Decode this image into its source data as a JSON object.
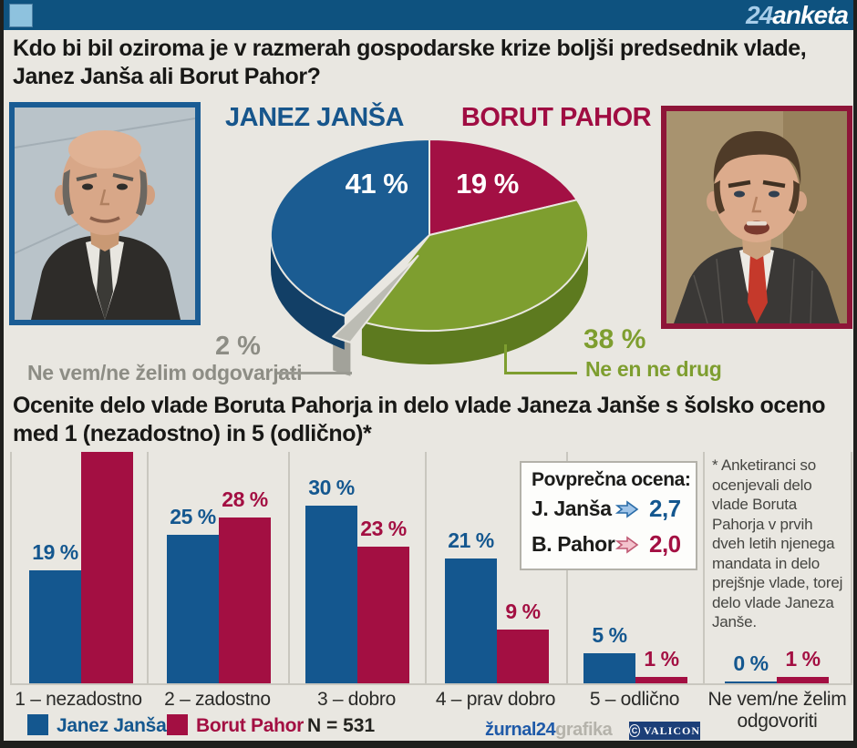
{
  "header": {
    "brand_24": "24",
    "brand_name": "anketa"
  },
  "question1": {
    "line1": "Kdo bi bil oziroma je v razmerah gospodarske krize boljši predsednik vlade,",
    "line2": "Janez Janša ali Borut Pahor?"
  },
  "question2": {
    "line1": "Ocenite delo vlade Boruta Pahorja in delo vlade Janeza Janše s šolsko oceno",
    "line2": "med 1 (nezadostno) in 5 (odlično)*"
  },
  "pie_section": {
    "candidate_left": "JANEZ JANŠA",
    "candidate_right": "BORUT PAHOR",
    "label_jansa_pct": "41 %",
    "label_pahor_pct": "19 %",
    "label_gray_pct": "2 %",
    "label_gray": "Ne vem/ne želim odgovarjati",
    "label_green_pct": "38 %",
    "label_green": "Ne en ne drug"
  },
  "average_box": {
    "title": "Povprečna ocena:",
    "rows": [
      {
        "name": "J. Janša",
        "value": "2,7",
        "color": "#14578f"
      },
      {
        "name": "B. Pahor",
        "value": "2,0",
        "color": "#a30f42"
      }
    ]
  },
  "footnote": "* Anketiranci so ocenjevali delo vlade Boruta Pahorja v prvih dveh letih njenega mandata in delo prejšnje vlade, torej delo vlade Janeza Janše.",
  "footer": {
    "zurnal": "žurnal24",
    "grafika": "grafika",
    "valicon": "VALICON",
    "valicon_c": "C"
  },
  "colors": {
    "jansa_blue": "#14578f",
    "pahor_red": "#a30f42",
    "neither_green": "#7e9e2f",
    "undecided_gray": "#bcbcb4",
    "header_bg": "#0e527f"
  },
  "chart_data": [
    {
      "type": "pie",
      "title": "Kdo bi bil oziroma je v razmerah gospodarske krize boljši predsednik vlade, Janez Janša ali Borut Pahor?",
      "style": "3d",
      "start_angle_deg": 0,
      "value_suffix": " %",
      "slices": [
        {
          "label": "BORUT PAHOR",
          "value": 19,
          "color": "#a31044",
          "dark": "#7a0c33"
        },
        {
          "label": "Ne en ne drug",
          "value": 38,
          "color": "#7e9e2f",
          "dark": "#5d7a1f"
        },
        {
          "label": "Ne vem/ne želim odgovarjati",
          "value": 2,
          "color": "#bcbcb4",
          "dark": "#a2a29a",
          "exploded": true
        },
        {
          "label": "JANEZ JANŠA",
          "value": 41,
          "color": "#1b5c92",
          "dark": "#123f66"
        }
      ]
    },
    {
      "type": "bar",
      "title": "Ocenite delo vlade Boruta Pahorja in delo vlade Janeza Janše s šolsko oceno med 1 (nezadostno) in 5 (odlično)*",
      "categories": [
        "1 – nezadostno",
        "2 – zadostno",
        "3 – dobro",
        "4 – prav dobro",
        "5 – odlično",
        "Ne vem/ne želim odgovoriti"
      ],
      "series": [
        {
          "name": "Janez Janša",
          "color": "#14578f",
          "values": [
            19,
            25,
            30,
            21,
            5,
            0
          ]
        },
        {
          "name": "Borut Pahor",
          "color": "#a30f42",
          "values": [
            39,
            28,
            23,
            9,
            1,
            1
          ]
        }
      ],
      "value_suffix": " %",
      "n_label": "N = 531",
      "ylim": [
        0,
        40
      ],
      "grid": false,
      "legend_position": "bottom-left"
    }
  ]
}
